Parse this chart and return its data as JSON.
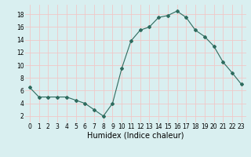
{
  "x": [
    0,
    1,
    2,
    3,
    4,
    5,
    6,
    7,
    8,
    9,
    10,
    11,
    12,
    13,
    14,
    15,
    16,
    17,
    18,
    19,
    20,
    21,
    22,
    23
  ],
  "y": [
    6.5,
    5.0,
    5.0,
    5.0,
    5.0,
    4.5,
    4.0,
    3.0,
    2.0,
    4.0,
    9.5,
    13.8,
    15.5,
    16.0,
    17.5,
    17.8,
    18.5,
    17.5,
    15.5,
    14.5,
    13.0,
    10.5,
    8.8,
    7.0
  ],
  "xlabel": "Humidex (Indice chaleur)",
  "xlim": [
    -0.5,
    23.5
  ],
  "ylim": [
    1,
    19.5
  ],
  "yticks": [
    2,
    4,
    6,
    8,
    10,
    12,
    14,
    16,
    18
  ],
  "xticks": [
    0,
    1,
    2,
    3,
    4,
    5,
    6,
    7,
    8,
    9,
    10,
    11,
    12,
    13,
    14,
    15,
    16,
    17,
    18,
    19,
    20,
    21,
    22,
    23
  ],
  "line_color": "#2e6b5e",
  "marker": "D",
  "marker_size": 2.0,
  "bg_color": "#d9eff0",
  "grid_color": "#f0c8c8",
  "label_fontsize": 7,
  "tick_fontsize": 5.5
}
